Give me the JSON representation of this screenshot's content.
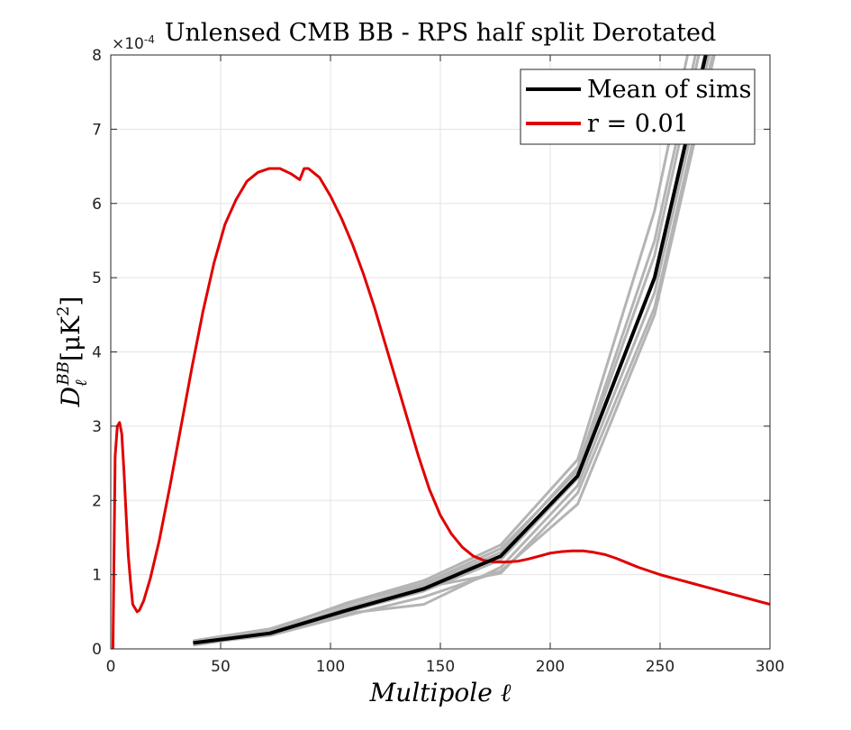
{
  "chart_data": {
    "type": "line",
    "title": "Unlensed CMB BB - RPS half split Derotated",
    "xlabel": "Multipole ℓ",
    "ylabel_main": "D",
    "ylabel_sub": "ℓ",
    "ylabel_sup": "BB",
    "ylabel_units_open": "[μK",
    "ylabel_units_pow": "2",
    "ylabel_units_close": "]",
    "y_exponent_base": "×10",
    "y_exponent_pow": "-4",
    "xlim": [
      0,
      300
    ],
    "ylim": [
      0,
      8
    ],
    "x_ticks": [
      0,
      50,
      100,
      150,
      200,
      250,
      300
    ],
    "y_ticks": [
      0,
      1,
      2,
      3,
      4,
      5,
      6,
      7,
      8
    ],
    "grid": true,
    "legend_position": "top-right",
    "colors": {
      "mean": "#000000",
      "model": "#e00000",
      "sims": "#b4b4b4",
      "grid": "#e3e3e3",
      "axis": "#262626"
    },
    "series": [
      {
        "name": "Mean of sims",
        "x": [
          37.5,
          72.5,
          107.5,
          142.5,
          177.5,
          212.5,
          247.5,
          282.5
        ],
        "values": [
          0.08,
          0.21,
          0.52,
          0.81,
          1.25,
          2.33,
          5.0,
          9.5
        ]
      },
      {
        "name": "r = 0.01",
        "x": [
          1,
          2,
          3,
          4,
          5,
          6,
          7,
          8,
          9,
          10,
          12,
          13,
          15,
          18,
          22,
          27,
          32,
          37,
          42,
          47,
          52,
          57,
          62,
          67,
          72,
          77,
          82,
          86,
          88,
          90,
          95,
          100,
          105,
          110,
          115,
          120,
          125,
          130,
          135,
          140,
          145,
          150,
          155,
          160,
          165,
          170,
          175,
          180,
          185,
          190,
          195,
          200,
          205,
          210,
          215,
          220,
          225,
          230,
          235,
          240,
          245,
          250,
          255,
          260,
          265,
          270,
          275,
          280,
          285,
          290,
          295,
          300
        ],
        "values": [
          0.0,
          2.6,
          3.0,
          3.05,
          2.9,
          2.4,
          1.8,
          1.25,
          0.9,
          0.6,
          0.5,
          0.52,
          0.65,
          0.95,
          1.45,
          2.2,
          3.0,
          3.8,
          4.55,
          5.2,
          5.72,
          6.05,
          6.3,
          6.42,
          6.47,
          6.47,
          6.4,
          6.32,
          6.47,
          6.47,
          6.35,
          6.1,
          5.8,
          5.45,
          5.05,
          4.6,
          4.1,
          3.6,
          3.1,
          2.6,
          2.15,
          1.8,
          1.55,
          1.37,
          1.25,
          1.19,
          1.17,
          1.17,
          1.18,
          1.21,
          1.25,
          1.29,
          1.31,
          1.32,
          1.32,
          1.3,
          1.27,
          1.22,
          1.16,
          1.1,
          1.05,
          1.0,
          0.96,
          0.92,
          0.88,
          0.84,
          0.8,
          0.76,
          0.72,
          0.68,
          0.64,
          0.6
        ]
      }
    ],
    "sims_x": [
      37.5,
      72.5,
      107.5,
      142.5,
      177.5,
      212.5,
      247.5,
      282.5
    ],
    "sims": [
      [
        0.06,
        0.2,
        0.5,
        0.78,
        1.2,
        2.3,
        5.0,
        9.6
      ],
      [
        0.1,
        0.23,
        0.55,
        0.85,
        1.3,
        2.45,
        5.5,
        10.2
      ],
      [
        0.07,
        0.18,
        0.45,
        0.7,
        1.05,
        1.95,
        4.5,
        9.0
      ],
      [
        0.09,
        0.25,
        0.62,
        0.92,
        1.4,
        2.55,
        5.9,
        10.8
      ],
      [
        0.05,
        0.2,
        0.48,
        0.6,
        1.1,
        2.2,
        4.8,
        9.3
      ],
      [
        0.11,
        0.27,
        0.6,
        0.88,
        1.35,
        2.4,
        5.3,
        10.0
      ],
      [
        0.08,
        0.22,
        0.56,
        0.83,
        1.02,
        2.1,
        4.6,
        9.1
      ]
    ]
  }
}
